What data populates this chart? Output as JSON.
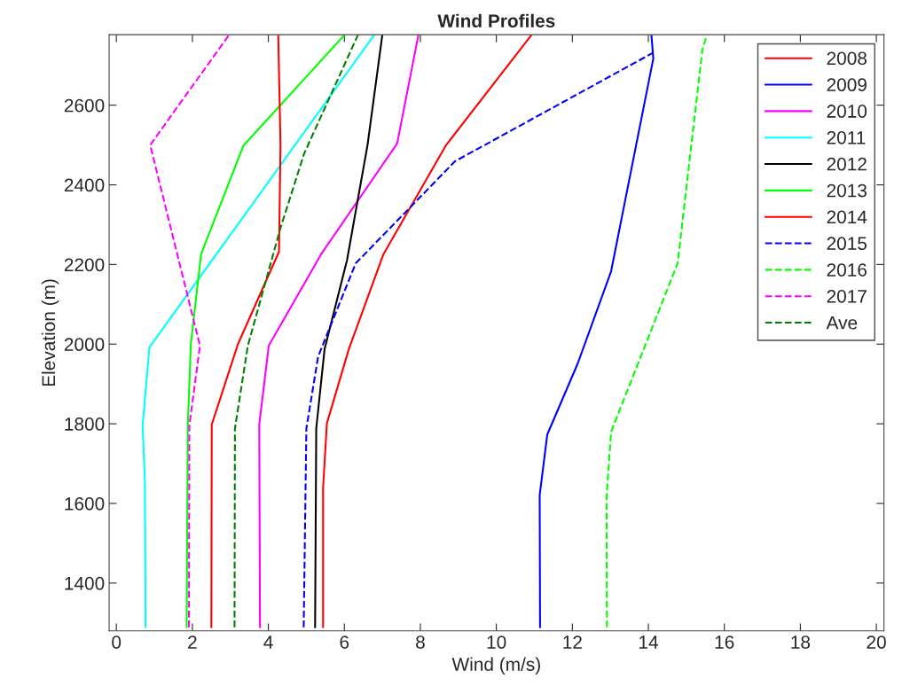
{
  "chart_data": {
    "type": "line",
    "title": "Wind Profiles",
    "xlabel": "Wind (m/s)",
    "ylabel": "Elevation (m)",
    "xlim": [
      -0.19,
      20.2
    ],
    "ylim": [
      1280,
      2777
    ],
    "xticks": [
      0,
      2,
      4,
      6,
      8,
      10,
      12,
      14,
      16,
      18,
      20
    ],
    "yticks": [
      1400,
      1600,
      1800,
      2000,
      2200,
      2400,
      2600
    ],
    "grid": false,
    "legend": "top right",
    "series": [
      {
        "name": "2008",
        "color": "#ff0000",
        "line_style": "solid",
        "x": [
          5.44,
          5.44,
          5.54,
          6.12,
          7.03,
          8.68,
          10.93
        ],
        "values": [
          1289,
          1639,
          1801,
          1988,
          2226,
          2500,
          2777
        ]
      },
      {
        "name": "2009",
        "color": "#0000ff",
        "line_style": "solid",
        "x": [
          11.15,
          11.14,
          11.34,
          12.14,
          13.02,
          14.13,
          14.08
        ],
        "values": [
          1289,
          1621,
          1773,
          1951,
          2183,
          2717,
          2777
        ]
      },
      {
        "name": "2010",
        "color": "#ff00ff",
        "line_style": "solid",
        "x": [
          3.78,
          3.76,
          4.01,
          5.39,
          7.39,
          7.95
        ],
        "values": [
          1289,
          1798,
          1996,
          2226,
          2504,
          2777
        ]
      },
      {
        "name": "2011",
        "color": "#00ffff",
        "line_style": "solid",
        "x": [
          0.77,
          0.75,
          0.69,
          0.87,
          6.79
        ],
        "values": [
          1289,
          1661,
          1795,
          1992,
          2777
        ]
      },
      {
        "name": "2012",
        "color": "#000000",
        "line_style": "solid",
        "x": [
          5.23,
          5.26,
          5.48,
          6.07,
          6.61,
          7.0
        ],
        "values": [
          1289,
          1788,
          1988,
          2211,
          2500,
          2777
        ]
      },
      {
        "name": "2013",
        "color": "#00ff00",
        "line_style": "solid",
        "x": [
          1.85,
          1.88,
          1.96,
          2.23,
          3.34,
          6.01
        ],
        "values": [
          1289,
          1795,
          2000,
          2226,
          2498,
          2777
        ]
      },
      {
        "name": "2014",
        "color": "#ff0000",
        "line_style": "solid",
        "x": [
          2.5,
          2.51,
          3.2,
          4.28,
          4.32,
          4.26
        ],
        "values": [
          1289,
          1798,
          2000,
          2232,
          2501,
          2777
        ]
      },
      {
        "name": "2015",
        "color": "#0000ff",
        "line_style": "dashed",
        "x": [
          4.93,
          5.0,
          5.31,
          6.3,
          8.91,
          14.13
        ],
        "values": [
          1289,
          1788,
          1969,
          2203,
          2459,
          2732
        ]
      },
      {
        "name": "2016",
        "color": "#00ff00",
        "line_style": "dashed",
        "x": [
          12.91,
          12.9,
          13.02,
          14.77,
          15.42,
          15.54
        ],
        "values": [
          1289,
          1617,
          1780,
          2203,
          2738,
          2777
        ]
      },
      {
        "name": "2017",
        "color": "#ff00ff",
        "line_style": "dashed",
        "x": [
          1.91,
          1.92,
          2.2,
          0.89,
          2.97
        ],
        "values": [
          1289,
          1795,
          1996,
          2500,
          2777
        ]
      },
      {
        "name": "Ave",
        "color": "#007f00",
        "line_style": "dashed",
        "x": [
          3.11,
          3.12,
          3.46,
          4.32,
          4.94,
          6.36
        ],
        "values": [
          1289,
          1788,
          1996,
          2292,
          2478,
          2777
        ]
      }
    ]
  }
}
